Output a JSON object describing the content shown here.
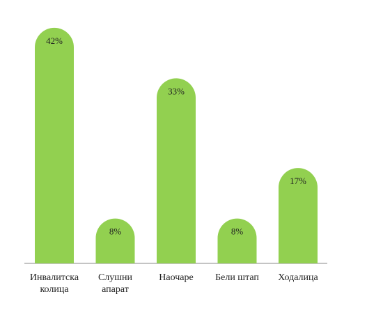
{
  "chart_data": {
    "type": "bar",
    "categories": [
      "Инвалитска колица",
      "Слушни апарат",
      "Наочаре",
      "Бели штап",
      "Ходалица"
    ],
    "values": [
      42,
      8,
      33,
      8,
      17
    ],
    "value_labels": [
      "42%",
      "8%",
      "33%",
      "8%",
      "17%"
    ],
    "color": "#92d050"
  }
}
